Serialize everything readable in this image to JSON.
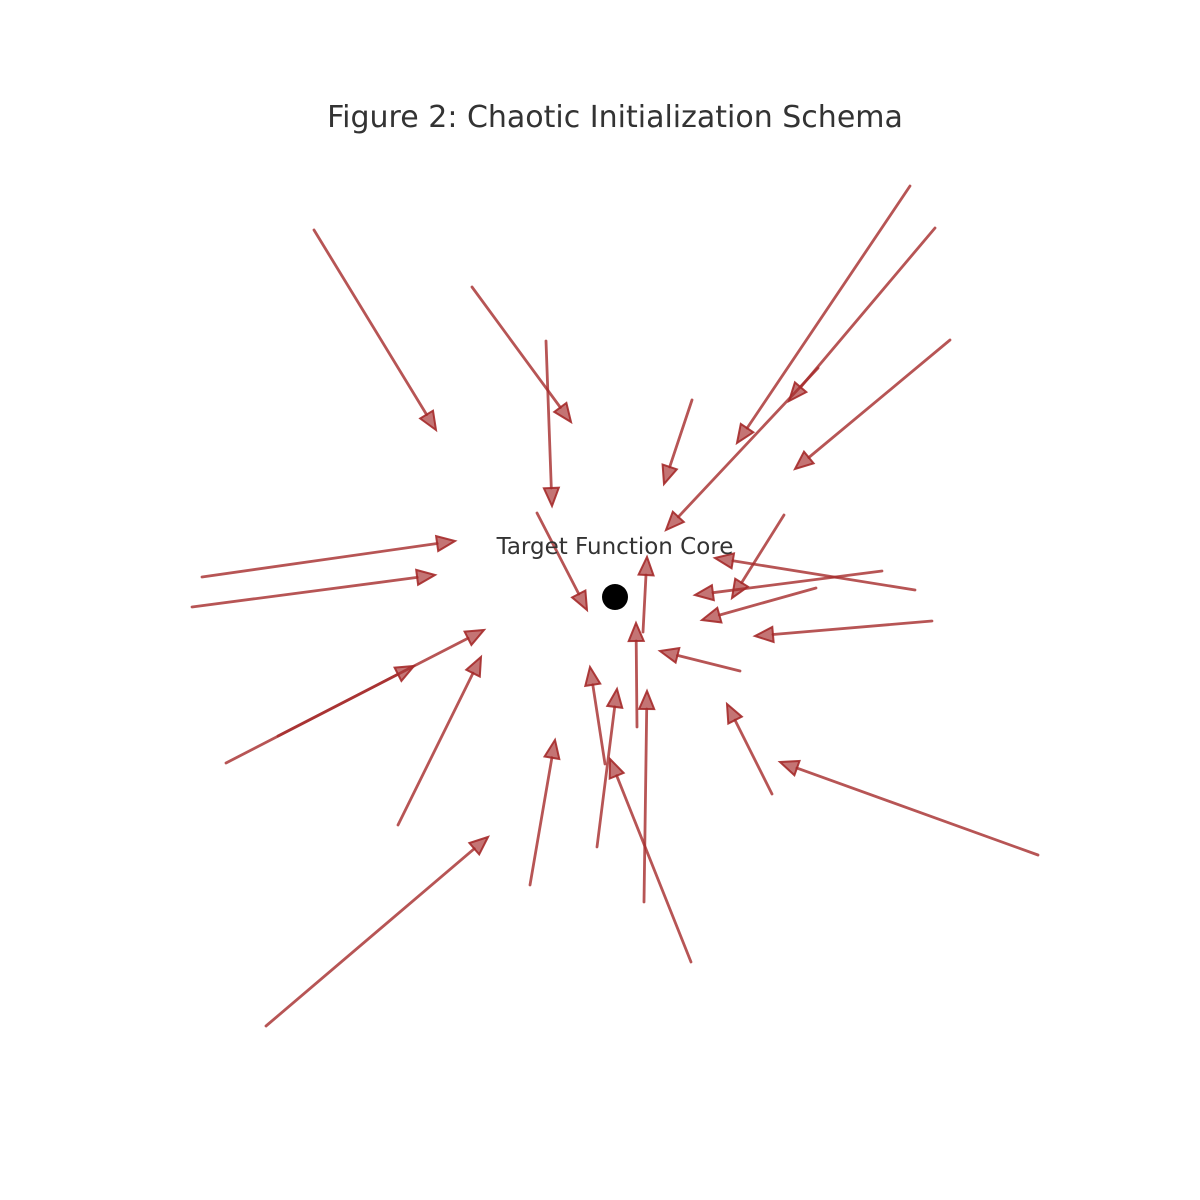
{
  "figure": {
    "title": "Figure 2: Chaotic Initialization Schema",
    "core_label": "Target Function Core",
    "colors": {
      "arrow": "#a52a2a",
      "core": "#000000",
      "text": "#333333",
      "background": "#ffffff"
    }
  }
}
